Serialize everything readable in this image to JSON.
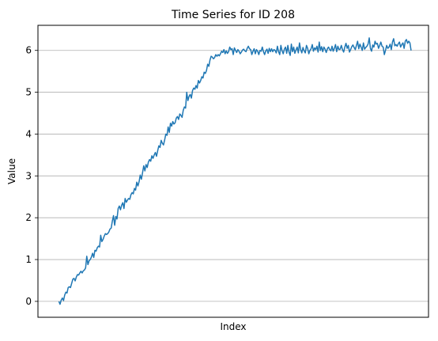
{
  "chart_data": {
    "type": "line",
    "title": "Time Series for ID 208",
    "xlabel": "Index",
    "ylabel": "Value",
    "ylim": [
      -0.38,
      6.6
    ],
    "xlim": [
      -18,
      318
    ],
    "yticks": [
      0,
      1,
      2,
      3,
      4,
      5,
      6
    ],
    "ytick_labels": [
      "0",
      "1",
      "2",
      "3",
      "4",
      "5",
      "6"
    ],
    "xticks_shown": false,
    "grid": "horizontal",
    "line_color": "#1f77b4",
    "series": [
      {
        "values": [
          0.0,
          -0.07,
          0.03,
          0.08,
          0.02,
          0.15,
          0.22,
          0.2,
          0.33,
          0.35,
          0.33,
          0.43,
          0.53,
          0.55,
          0.49,
          0.58,
          0.64,
          0.63,
          0.68,
          0.72,
          0.68,
          0.73,
          0.75,
          0.8,
          1.08,
          0.88,
          0.97,
          1.0,
          1.06,
          1.15,
          1.05,
          1.22,
          1.2,
          1.28,
          1.32,
          1.3,
          1.58,
          1.43,
          1.48,
          1.56,
          1.62,
          1.6,
          1.62,
          1.66,
          1.73,
          1.75,
          1.92,
          2.05,
          1.82,
          2.03,
          1.97,
          2.22,
          2.28,
          2.19,
          2.3,
          2.36,
          2.22,
          2.46,
          2.37,
          2.42,
          2.46,
          2.44,
          2.55,
          2.6,
          2.57,
          2.7,
          2.66,
          2.85,
          2.76,
          2.86,
          3.02,
          2.92,
          3.08,
          3.24,
          3.12,
          3.27,
          3.2,
          3.33,
          3.39,
          3.35,
          3.48,
          3.42,
          3.5,
          3.56,
          3.47,
          3.6,
          3.72,
          3.68,
          3.85,
          3.78,
          3.74,
          3.86,
          4.0,
          3.97,
          4.17,
          4.04,
          4.26,
          4.19,
          4.3,
          4.24,
          4.27,
          4.38,
          4.42,
          4.35,
          4.48,
          4.45,
          4.4,
          4.57,
          4.65,
          4.62,
          5.0,
          4.8,
          4.9,
          4.95,
          4.86,
          5.04,
          5.1,
          5.07,
          5.16,
          5.1,
          5.28,
          5.22,
          5.28,
          5.37,
          5.34,
          5.48,
          5.45,
          5.52,
          5.67,
          5.62,
          5.77,
          5.86,
          5.84,
          5.8,
          5.83,
          5.9,
          5.86,
          5.9,
          5.87,
          5.92,
          5.98,
          5.95,
          6.02,
          5.92,
          5.99,
          5.93,
          5.97,
          6.08,
          6.02,
          6.04,
          5.9,
          6.06,
          6.0,
          5.95,
          6.02,
          5.98,
          5.92,
          5.96,
          6.01,
          6.03,
          5.99,
          5.97,
          6.05,
          6.1,
          6.04,
          6.02,
          5.9,
          5.98,
          6.04,
          5.92,
          6.02,
          5.98,
          5.9,
          6.0,
          5.98,
          6.08,
          5.97,
          5.9,
          5.99,
          6.03,
          5.93,
          6.05,
          5.97,
          6.04,
          5.97,
          6.02,
          6.0,
          5.94,
          6.1,
          5.97,
          5.9,
          6.12,
          5.99,
          5.92,
          6.03,
          6.08,
          5.93,
          6.12,
          5.96,
          5.88,
          6.15,
          5.97,
          6.08,
          5.93,
          6.01,
          6.08,
          5.94,
          6.18,
          6.02,
          5.94,
          6.07,
          5.99,
          5.94,
          6.12,
          6.05,
          5.92,
          6.0,
          6.04,
          6.14,
          5.98,
          6.06,
          6.02,
          6.1,
          5.96,
          6.2,
          6.0,
          6.09,
          5.97,
          6.08,
          6.03,
          5.95,
          6.04,
          6.08,
          6.02,
          5.99,
          6.1,
          5.98,
          6.05,
          6.14,
          5.97,
          6.1,
          6.02,
          6.03,
          6.12,
          6.02,
          5.96,
          6.08,
          6.17,
          6.05,
          6.12,
          5.96,
          6.02,
          6.09,
          6.13,
          6.07,
          6.02,
          6.12,
          6.22,
          6.04,
          6.15,
          6.08,
          6.0,
          6.18,
          6.03,
          6.07,
          6.1,
          6.15,
          6.3,
          6.05,
          5.98,
          6.13,
          6.08,
          6.22,
          6.15,
          6.17,
          6.05,
          6.12,
          6.2,
          6.1,
          6.08,
          5.9,
          6.0,
          6.12,
          6.05,
          6.08,
          6.15,
          6.02,
          6.2,
          6.28,
          6.11,
          6.14,
          6.1,
          6.16,
          6.2,
          6.08,
          6.14,
          6.18,
          6.05,
          6.22,
          6.26,
          6.17,
          6.22,
          6.18,
          6.0
        ]
      }
    ]
  }
}
